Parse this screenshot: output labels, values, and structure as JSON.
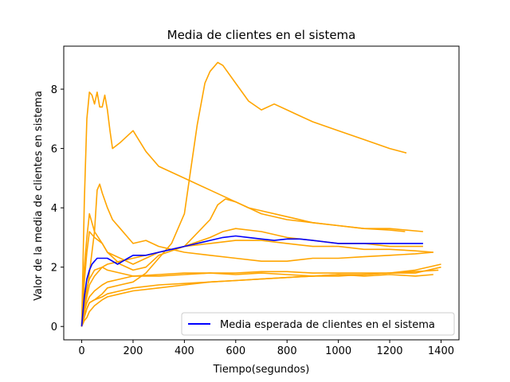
{
  "chart_data": {
    "type": "line",
    "title": "Media de clientes en el sistema",
    "xlabel": "Tiempo(segundos)",
    "ylabel": "Valor de la media de clientes en sistema",
    "xlim": [
      -70,
      1470
    ],
    "ylim": [
      -0.45,
      9.45
    ],
    "xticks": [
      0,
      200,
      400,
      600,
      800,
      1000,
      1200,
      1400
    ],
    "yticks": [
      0,
      2,
      4,
      6,
      8
    ],
    "grid": false,
    "legend": {
      "placement": "lower right",
      "entries": [
        "Media esperada de clientes en el sistema"
      ]
    },
    "colors": {
      "simulations": "#ffa500",
      "expected": "#0000ff"
    },
    "simulations": [
      {
        "x": [
          0,
          10,
          20,
          30,
          40,
          50,
          60,
          70,
          80,
          90,
          100,
          110,
          120,
          150,
          200,
          250,
          300,
          400,
          500,
          600,
          700,
          800,
          900,
          1000,
          1100,
          1200,
          1260
        ],
        "y": [
          0,
          4.2,
          7.0,
          7.9,
          7.8,
          7.5,
          7.9,
          7.4,
          7.4,
          7.8,
          7.3,
          6.6,
          6.0,
          6.2,
          6.6,
          5.9,
          5.4,
          5.0,
          4.6,
          4.2,
          3.8,
          3.6,
          3.5,
          3.4,
          3.3,
          3.25,
          3.2
        ]
      },
      {
        "x": [
          0,
          10,
          20,
          30,
          40,
          50,
          60,
          70,
          80,
          100,
          120,
          150,
          180,
          200,
          250,
          300,
          350,
          400,
          500,
          600,
          700,
          800,
          900,
          1000,
          1100,
          1200,
          1300,
          1370
        ],
        "y": [
          0,
          0.5,
          1.2,
          1.8,
          2.5,
          3.2,
          4.6,
          4.8,
          4.5,
          4.0,
          3.6,
          3.3,
          3.0,
          2.8,
          2.9,
          2.7,
          2.6,
          2.5,
          2.4,
          2.3,
          2.2,
          2.2,
          2.3,
          2.3,
          2.35,
          2.4,
          2.45,
          2.5
        ]
      },
      {
        "x": [
          0,
          10,
          20,
          30,
          50,
          80,
          100,
          150,
          200,
          250,
          300,
          350,
          400,
          420,
          450,
          480,
          500,
          530,
          550,
          600,
          650,
          700,
          750,
          800,
          850,
          900,
          1000,
          1100,
          1200,
          1265
        ],
        "y": [
          0,
          0.4,
          0.6,
          0.8,
          0.9,
          1.1,
          1.3,
          1.4,
          1.5,
          1.8,
          2.3,
          2.8,
          3.8,
          5.0,
          6.8,
          8.2,
          8.6,
          8.9,
          8.8,
          8.2,
          7.6,
          7.3,
          7.5,
          7.3,
          7.1,
          6.9,
          6.6,
          6.3,
          6.0,
          5.85
        ]
      },
      {
        "x": [
          0,
          10,
          20,
          30,
          50,
          80,
          100,
          150,
          200,
          250,
          300,
          400,
          500,
          550,
          600,
          700,
          800,
          900,
          1000,
          1100,
          1200,
          1330
        ],
        "y": [
          0,
          2.0,
          3.0,
          3.8,
          3.2,
          2.8,
          2.5,
          2.3,
          2.1,
          2.3,
          2.5,
          2.7,
          3.0,
          3.2,
          3.3,
          3.2,
          3.0,
          2.9,
          2.8,
          2.8,
          2.7,
          2.7
        ]
      },
      {
        "x": [
          0,
          10,
          20,
          30,
          50,
          80,
          100,
          150,
          200,
          300,
          400,
          500,
          530,
          560,
          600,
          650,
          700,
          800,
          900,
          1000,
          1100,
          1200,
          1330
        ],
        "y": [
          0,
          0.6,
          1.0,
          1.4,
          1.7,
          2.0,
          2.1,
          2.2,
          2.3,
          2.5,
          2.7,
          3.6,
          4.1,
          4.3,
          4.2,
          4.0,
          3.9,
          3.7,
          3.5,
          3.4,
          3.3,
          3.3,
          3.2
        ]
      },
      {
        "x": [
          0,
          10,
          20,
          30,
          50,
          80,
          100,
          150,
          200,
          250,
          300,
          400,
          500,
          600,
          700,
          800,
          900,
          1000,
          1100,
          1200,
          1300,
          1370
        ],
        "y": [
          0,
          1.5,
          2.5,
          3.2,
          3.0,
          2.8,
          2.5,
          2.1,
          1.9,
          2.0,
          2.4,
          2.7,
          2.8,
          2.9,
          2.9,
          2.8,
          2.7,
          2.7,
          2.6,
          2.6,
          2.55,
          2.5
        ]
      },
      {
        "x": [
          0,
          10,
          20,
          30,
          50,
          80,
          100,
          150,
          200,
          300,
          400,
          500,
          600,
          700,
          800,
          900,
          1000,
          1100,
          1200,
          1300,
          1400
        ],
        "y": [
          0,
          0.3,
          0.6,
          0.8,
          0.9,
          1.0,
          1.1,
          1.2,
          1.3,
          1.4,
          1.45,
          1.5,
          1.55,
          1.6,
          1.65,
          1.7,
          1.75,
          1.75,
          1.8,
          1.9,
          2.1
        ]
      },
      {
        "x": [
          0,
          10,
          20,
          30,
          50,
          80,
          100,
          150,
          200,
          300,
          400,
          500,
          600,
          700,
          800,
          900,
          1000,
          1100,
          1200,
          1300,
          1390
        ],
        "y": [
          0,
          0.5,
          0.8,
          1.0,
          1.2,
          1.4,
          1.5,
          1.6,
          1.7,
          1.75,
          1.8,
          1.8,
          1.8,
          1.85,
          1.85,
          1.8,
          1.8,
          1.8,
          1.8,
          1.85,
          1.9
        ]
      },
      {
        "x": [
          0,
          10,
          20,
          30,
          50,
          80,
          100,
          150,
          200,
          300,
          400,
          500,
          600,
          700,
          800,
          900,
          1000,
          1100,
          1200,
          1300,
          1370
        ],
        "y": [
          0,
          0.8,
          1.3,
          1.6,
          1.9,
          2.0,
          1.9,
          1.8,
          1.7,
          1.7,
          1.75,
          1.8,
          1.75,
          1.8,
          1.75,
          1.7,
          1.75,
          1.7,
          1.75,
          1.7,
          1.75
        ]
      },
      {
        "x": [
          0,
          10,
          20,
          30,
          50,
          80,
          100,
          150,
          200,
          300,
          400,
          500,
          600,
          700,
          800,
          900,
          1000,
          1100,
          1200,
          1300,
          1400
        ],
        "y": [
          0,
          0.2,
          0.3,
          0.5,
          0.7,
          0.9,
          1.0,
          1.1,
          1.2,
          1.3,
          1.4,
          1.5,
          1.55,
          1.6,
          1.65,
          1.7,
          1.7,
          1.75,
          1.8,
          1.8,
          2.0
        ]
      }
    ],
    "series": [
      {
        "name": "Media esperada de clientes en el sistema",
        "x": [
          0,
          10,
          20,
          30,
          40,
          50,
          60,
          80,
          100,
          120,
          140,
          160,
          180,
          200,
          250,
          300,
          350,
          400,
          450,
          500,
          550,
          600,
          650,
          700,
          750,
          800,
          850,
          900,
          950,
          1000,
          1050,
          1100,
          1150,
          1200,
          1250,
          1300,
          1330
        ],
        "y": [
          0,
          1.0,
          1.6,
          1.9,
          2.1,
          2.2,
          2.3,
          2.3,
          2.3,
          2.2,
          2.1,
          2.2,
          2.3,
          2.4,
          2.4,
          2.5,
          2.6,
          2.7,
          2.8,
          2.9,
          3.0,
          3.05,
          3.0,
          2.95,
          2.9,
          2.95,
          2.95,
          2.9,
          2.85,
          2.8,
          2.8,
          2.8,
          2.8,
          2.8,
          2.8,
          2.8,
          2.8
        ]
      }
    ]
  }
}
